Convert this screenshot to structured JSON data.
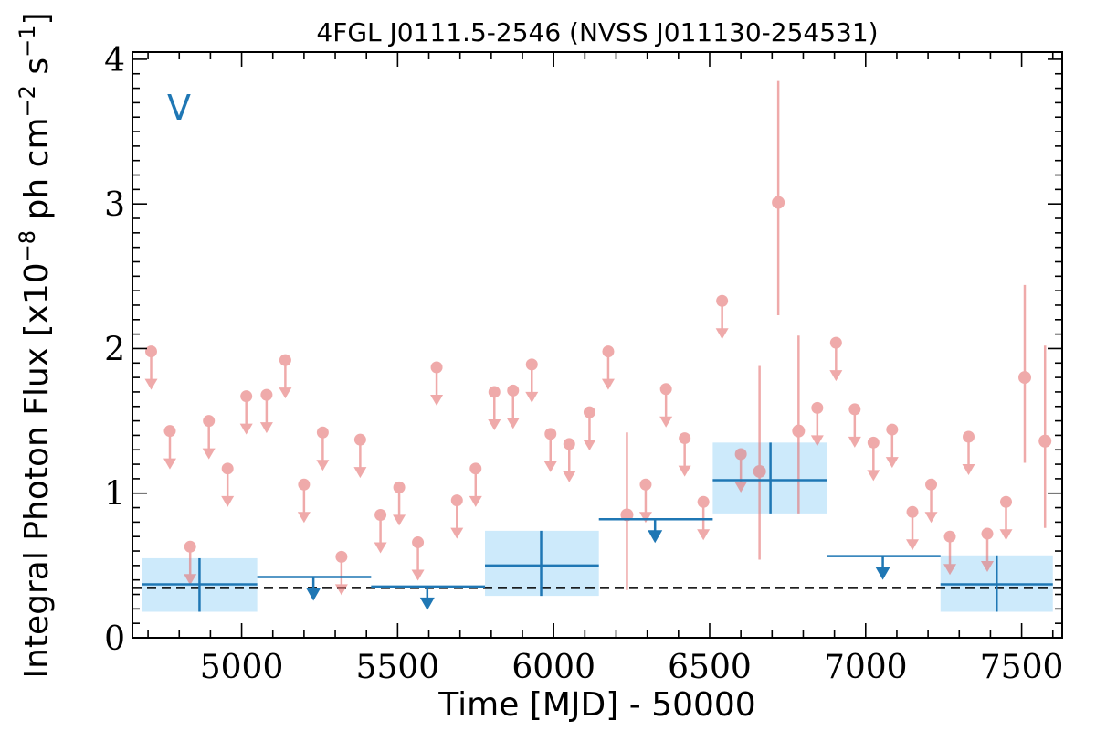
{
  "chart_data": {
    "type": "scatter",
    "title": "4FGL J0111.5-2546 (NVSS J011130-254531)",
    "xlabel": "Time [MJD] - 50000",
    "ylabel": "Integral Photon Flux [x10",
    "ylabel_exp1": "−8",
    "ylabel_mid": " ph cm",
    "ylabel_exp2": "−2",
    "ylabel_mid2": " s",
    "ylabel_exp3": "−1",
    "ylabel_end": "]",
    "band_label": "V",
    "xlim": [
      4650,
      7630
    ],
    "ylim": [
      0,
      4.05
    ],
    "xticks": [
      5000,
      5500,
      6000,
      6500,
      7000,
      7500
    ],
    "yticks": [
      0,
      1,
      2,
      3,
      4
    ],
    "xtick_labels": [
      "5000",
      "5500",
      "6000",
      "6500",
      "7000",
      "7500"
    ],
    "ytick_labels": [
      "0",
      "1",
      "2",
      "3",
      "4"
    ],
    "reference_level": 0.345,
    "colors": {
      "short": "#e57373",
      "long": "#1f77b4",
      "band_fill": "#cdeafb",
      "reference": "#000000"
    },
    "long_bins": [
      {
        "x": 4865,
        "x_lo": 4680,
        "x_hi": 5050,
        "y": 0.37,
        "err_lo": 0.18,
        "err_hi": 0.55,
        "upper_limit": false
      },
      {
        "x": 5230,
        "x_lo": 5050,
        "x_hi": 5415,
        "y": 0.42,
        "upper_limit": true
      },
      {
        "x": 5595,
        "x_lo": 5415,
        "x_hi": 5780,
        "y": 0.355,
        "upper_limit": true
      },
      {
        "x": 5960,
        "x_lo": 5780,
        "x_hi": 6145,
        "y": 0.5,
        "err_lo": 0.29,
        "err_hi": 0.74,
        "upper_limit": false
      },
      {
        "x": 6325,
        "x_lo": 6145,
        "x_hi": 6510,
        "y": 0.82,
        "upper_limit": true
      },
      {
        "x": 6695,
        "x_lo": 6510,
        "x_hi": 6875,
        "y": 1.09,
        "err_lo": 0.86,
        "err_hi": 1.35,
        "upper_limit": false
      },
      {
        "x": 7055,
        "x_lo": 6875,
        "x_hi": 7240,
        "y": 0.565,
        "upper_limit": true
      },
      {
        "x": 7420,
        "x_lo": 7240,
        "x_hi": 7600,
        "y": 0.37,
        "err_lo": 0.18,
        "err_hi": 0.57,
        "upper_limit": false
      }
    ],
    "short_points": [
      {
        "x": 4710,
        "y": 1.98,
        "upper_limit": true
      },
      {
        "x": 4770,
        "y": 1.43,
        "upper_limit": true
      },
      {
        "x": 4835,
        "y": 0.63,
        "upper_limit": true
      },
      {
        "x": 4895,
        "y": 1.5,
        "upper_limit": true
      },
      {
        "x": 4955,
        "y": 1.17,
        "upper_limit": true
      },
      {
        "x": 5015,
        "y": 1.67,
        "upper_limit": true
      },
      {
        "x": 5080,
        "y": 1.68,
        "upper_limit": true
      },
      {
        "x": 5140,
        "y": 1.92,
        "upper_limit": true
      },
      {
        "x": 5200,
        "y": 1.06,
        "upper_limit": true
      },
      {
        "x": 5260,
        "y": 1.42,
        "upper_limit": true
      },
      {
        "x": 5320,
        "y": 0.56,
        "upper_limit": true
      },
      {
        "x": 5380,
        "y": 1.37,
        "upper_limit": true
      },
      {
        "x": 5445,
        "y": 0.85,
        "upper_limit": true
      },
      {
        "x": 5505,
        "y": 1.04,
        "upper_limit": true
      },
      {
        "x": 5565,
        "y": 0.66,
        "upper_limit": true
      },
      {
        "x": 5625,
        "y": 1.87,
        "upper_limit": true
      },
      {
        "x": 5690,
        "y": 0.95,
        "upper_limit": true
      },
      {
        "x": 5750,
        "y": 1.17,
        "upper_limit": true
      },
      {
        "x": 5810,
        "y": 1.7,
        "upper_limit": true
      },
      {
        "x": 5870,
        "y": 1.71,
        "upper_limit": true
      },
      {
        "x": 5930,
        "y": 1.89,
        "upper_limit": true
      },
      {
        "x": 5990,
        "y": 1.41,
        "upper_limit": true
      },
      {
        "x": 6050,
        "y": 1.34,
        "upper_limit": true
      },
      {
        "x": 6115,
        "y": 1.56,
        "upper_limit": true
      },
      {
        "x": 6175,
        "y": 1.98,
        "upper_limit": true
      },
      {
        "x": 6235,
        "y": 0.85,
        "err_lo": 0.33,
        "err_hi": 1.42,
        "upper_limit": false
      },
      {
        "x": 6295,
        "y": 1.06,
        "upper_limit": true
      },
      {
        "x": 6360,
        "y": 1.72,
        "upper_limit": true
      },
      {
        "x": 6420,
        "y": 1.38,
        "upper_limit": true
      },
      {
        "x": 6480,
        "y": 0.94,
        "upper_limit": true
      },
      {
        "x": 6540,
        "y": 2.33,
        "upper_limit": true
      },
      {
        "x": 6600,
        "y": 1.27,
        "upper_limit": true
      },
      {
        "x": 6660,
        "y": 1.15,
        "err_lo": 0.54,
        "err_hi": 1.88,
        "upper_limit": false
      },
      {
        "x": 6720,
        "y": 3.01,
        "err_lo": 2.23,
        "err_hi": 3.85,
        "upper_limit": false
      },
      {
        "x": 6785,
        "y": 1.43,
        "err_lo": 0.86,
        "err_hi": 2.09,
        "upper_limit": false
      },
      {
        "x": 6845,
        "y": 1.59,
        "upper_limit": true
      },
      {
        "x": 6905,
        "y": 2.04,
        "upper_limit": true
      },
      {
        "x": 6965,
        "y": 1.58,
        "upper_limit": true
      },
      {
        "x": 7025,
        "y": 1.35,
        "upper_limit": true
      },
      {
        "x": 7085,
        "y": 1.44,
        "upper_limit": true
      },
      {
        "x": 7150,
        "y": 0.87,
        "upper_limit": true
      },
      {
        "x": 7210,
        "y": 1.06,
        "upper_limit": true
      },
      {
        "x": 7270,
        "y": 0.7,
        "upper_limit": true
      },
      {
        "x": 7330,
        "y": 1.39,
        "upper_limit": true
      },
      {
        "x": 7390,
        "y": 0.72,
        "upper_limit": true
      },
      {
        "x": 7450,
        "y": 0.94,
        "upper_limit": true
      },
      {
        "x": 7510,
        "y": 1.8,
        "err_lo": 1.21,
        "err_hi": 2.44,
        "upper_limit": false
      },
      {
        "x": 7575,
        "y": 1.36,
        "err_lo": 0.76,
        "err_hi": 2.02,
        "upper_limit": false
      }
    ]
  }
}
